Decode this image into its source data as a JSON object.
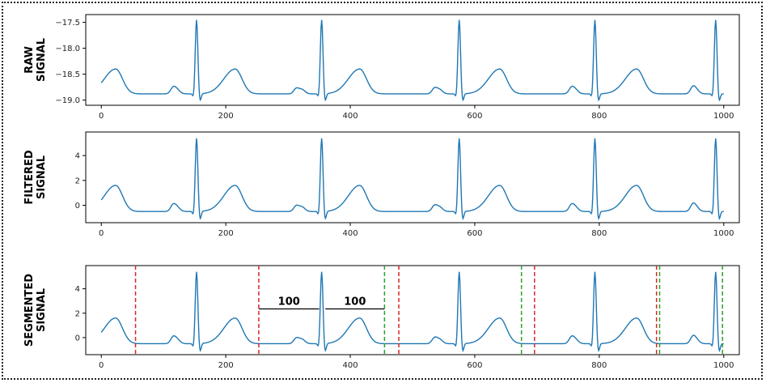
{
  "chart_data": [
    {
      "type": "line",
      "title": "",
      "ylabel": [
        "RAW",
        "SIGNAL"
      ],
      "xlabel": "",
      "xlim": [
        -25,
        1025
      ],
      "ylim": [
        -19.1,
        -17.35
      ],
      "xticks": [
        0,
        200,
        400,
        600,
        800,
        1000
      ],
      "yticks": [
        -19.0,
        -18.5,
        -18.0,
        -17.5
      ],
      "ytick_labels": [
        "−19.0",
        "−18.5",
        "−18.0",
        "−17.5"
      ],
      "line_color": "#1f77b4",
      "signal": {
        "baseline": -18.88,
        "qrs": [
          153,
          354,
          575,
          793,
          987
        ],
        "r_peak": -17.45,
        "t_wave": [
          23,
          215,
          415,
          640,
          860
        ],
        "t_height": -18.4,
        "s_depth": -19.03
      }
    },
    {
      "type": "line",
      "title": "",
      "ylabel": [
        "FILTERED",
        "SIGNAL"
      ],
      "xlabel": "",
      "xlim": [
        -25,
        1025
      ],
      "ylim": [
        -1.4,
        5.9
      ],
      "xticks": [
        0,
        200,
        400,
        600,
        800,
        1000
      ],
      "yticks": [
        0,
        2,
        4
      ],
      "ytick_labels": [
        "0",
        "2",
        "4"
      ],
      "line_color": "#1f77b4",
      "signal": {
        "baseline": -0.5,
        "qrs": [
          153,
          354,
          575,
          793,
          987
        ],
        "r_peak": 5.4,
        "t_wave": [
          23,
          215,
          415,
          640,
          860
        ],
        "t_height": 1.6,
        "s_depth": -1.2
      }
    },
    {
      "type": "line",
      "title": "",
      "ylabel": [
        "SEGMENTED",
        "SIGNAL"
      ],
      "xlabel": "",
      "xlim": [
        -25,
        1025
      ],
      "ylim": [
        -1.4,
        5.9
      ],
      "xticks": [
        0,
        200,
        400,
        600,
        800,
        1000
      ],
      "yticks": [
        0,
        2,
        4
      ],
      "ytick_labels": [
        "0",
        "2",
        "4"
      ],
      "line_color": "#1f77b4",
      "signal": {
        "baseline": -0.5,
        "qrs": [
          153,
          354,
          575,
          793,
          987
        ],
        "r_peak": 5.4,
        "t_wave": [
          23,
          215,
          415,
          640,
          860
        ],
        "t_height": 1.6,
        "s_depth": -1.2
      },
      "red_lines": [
        55,
        253,
        478,
        696,
        892
      ],
      "green_lines": [
        455,
        675,
        897,
        998
      ],
      "red_color": "#d62728",
      "green_color": "#2ca02c",
      "annotations": [
        {
          "label": "100",
          "x_start": 253,
          "x_end": 350,
          "y": 2.35
        },
        {
          "label": "100",
          "x_start": 360,
          "x_end": 455,
          "y": 2.35
        }
      ]
    }
  ]
}
